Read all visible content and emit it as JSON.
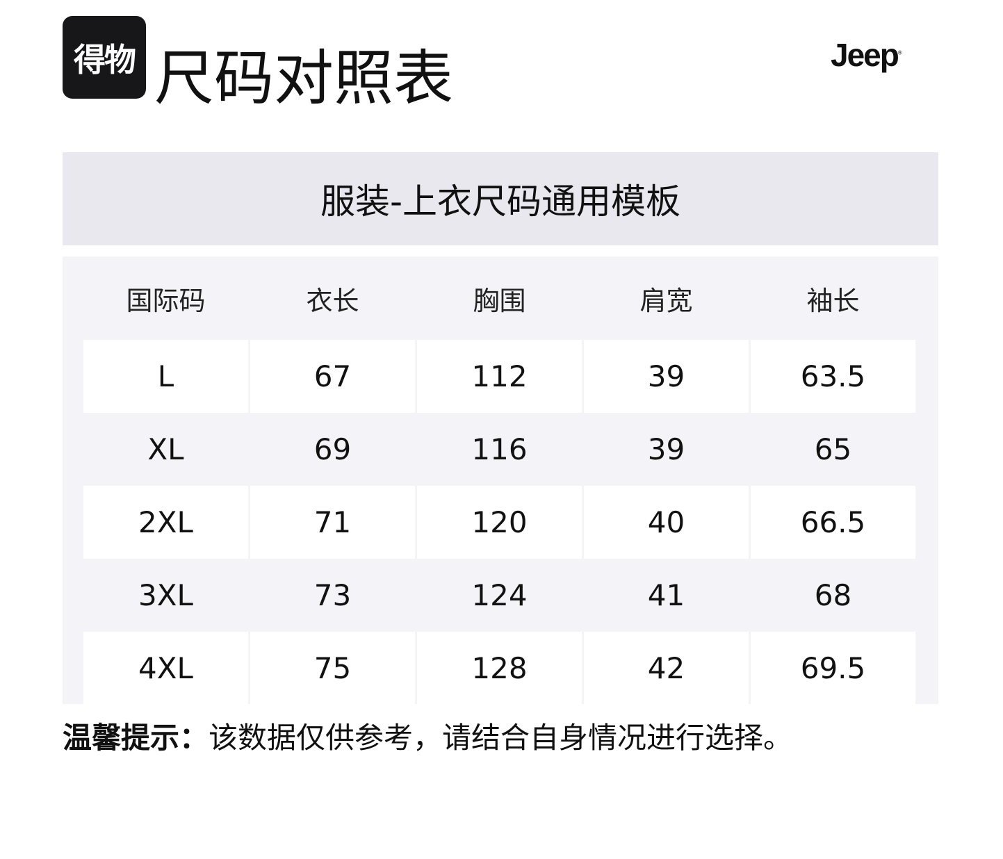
{
  "header": {
    "logo_text": "得物",
    "title": "尺码对照表",
    "brand": "Jeep",
    "brand_mark": "®"
  },
  "table": {
    "caption": "服装-上衣尺码通用模板",
    "columns": [
      "国际码",
      "衣长",
      "胸围",
      "肩宽",
      "袖长"
    ],
    "rows": [
      [
        "L",
        "67",
        "112",
        "39",
        "63.5"
      ],
      [
        "XL",
        "69",
        "116",
        "39",
        "65"
      ],
      [
        "2XL",
        "71",
        "120",
        "40",
        "66.5"
      ],
      [
        "3XL",
        "73",
        "124",
        "41",
        "68"
      ],
      [
        "4XL",
        "75",
        "128",
        "42",
        "69.5"
      ]
    ]
  },
  "note": {
    "label": "温馨提示：",
    "text": "该数据仅供参考，请结合自身情况进行选择。"
  },
  "colors": {
    "band": "#e8e8ee",
    "table_bg": "#f4f4f8",
    "cell": "#ffffff"
  }
}
